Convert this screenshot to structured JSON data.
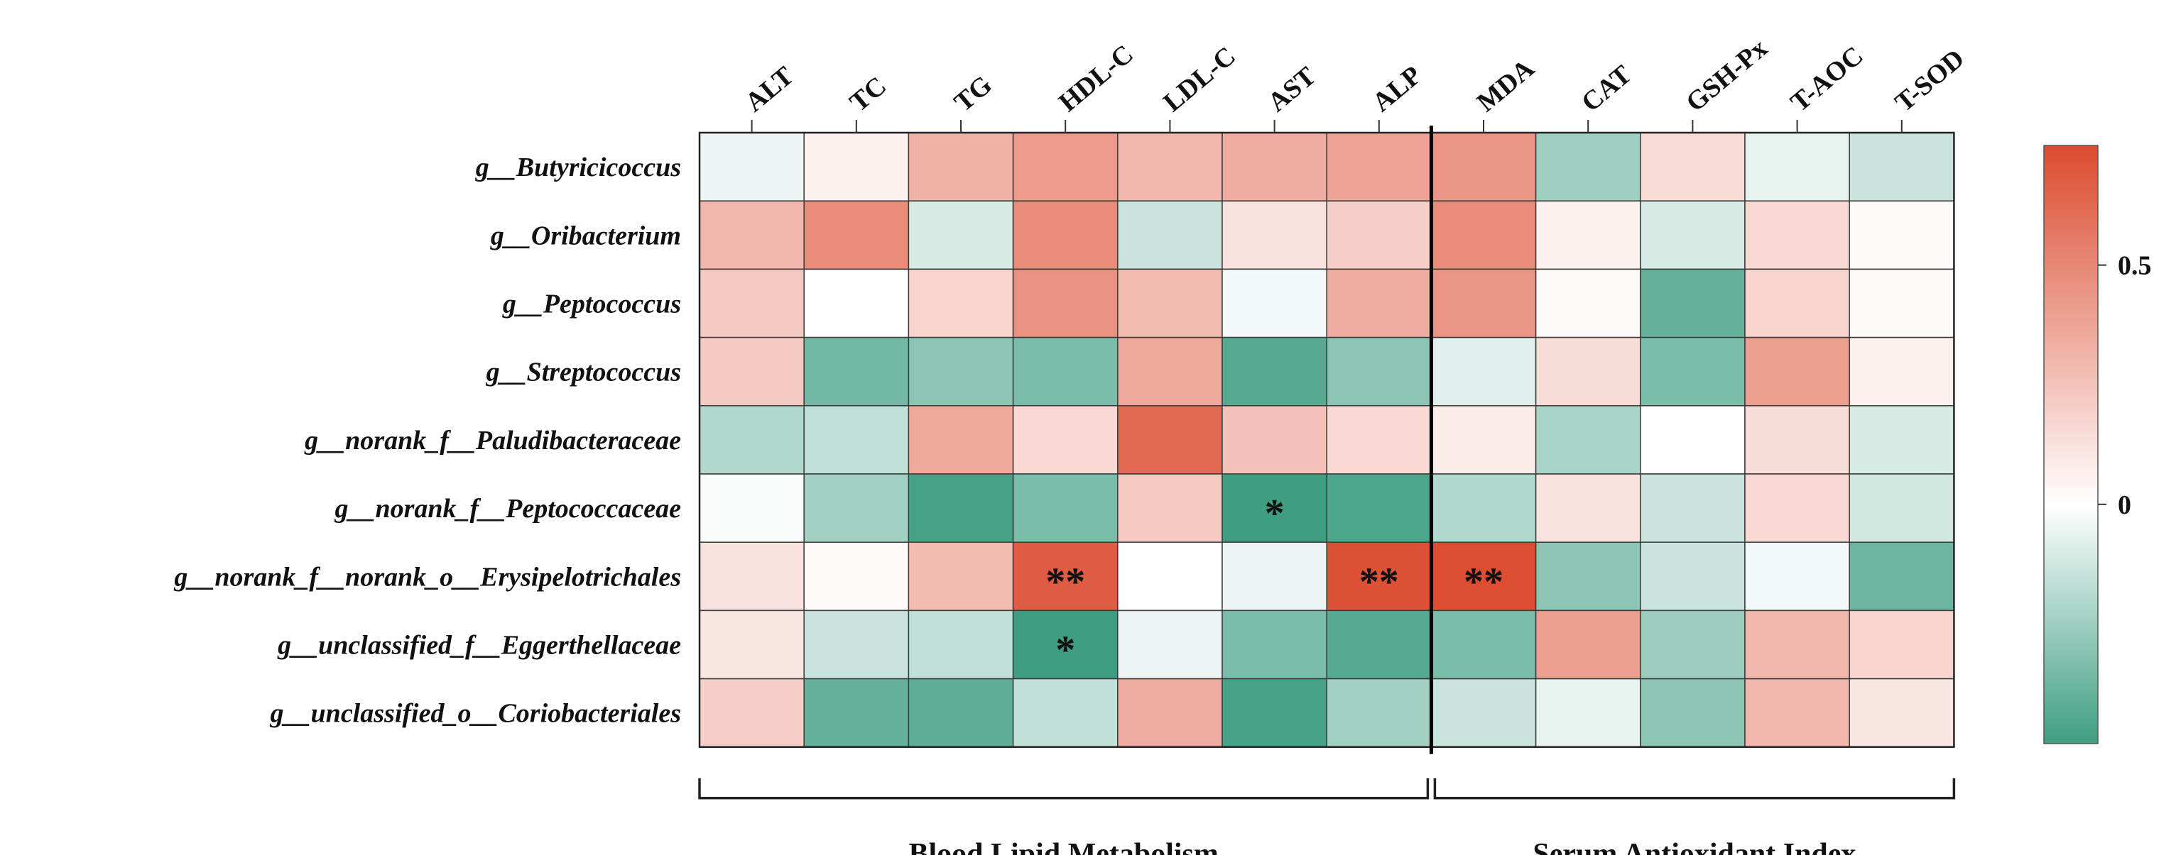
{
  "chart_data": {
    "type": "heatmap",
    "title": "",
    "rows": [
      "g__Butyricicoccus",
      "g__Oribacterium",
      "g__Peptococcus",
      "g__Streptococcus",
      "g__norank_f__Paludibacteraceae",
      "g__norank_f__Peptococcaceae",
      "g__norank_f__norank_o__Erysipelotrichales",
      "g__unclassified_f__Eggerthellaceae",
      "g__unclassified_o__Coriobacteriales"
    ],
    "columns": [
      "ALT",
      "TC",
      "TG",
      "HDL-C",
      "LDL-C",
      "AST",
      "ALP",
      "MDA",
      "CAT",
      "GSH-Px",
      "T-AOC",
      "T-SOD"
    ],
    "values": [
      [
        -0.05,
        0.06,
        0.32,
        0.42,
        0.3,
        0.34,
        0.38,
        0.44,
        -0.25,
        0.15,
        -0.06,
        -0.14
      ],
      [
        0.3,
        0.48,
        -0.1,
        0.48,
        -0.14,
        0.12,
        0.2,
        0.48,
        0.06,
        -0.1,
        0.16,
        0.02
      ],
      [
        0.22,
        0.0,
        0.18,
        0.46,
        0.28,
        -0.03,
        0.34,
        0.44,
        0.02,
        -0.4,
        0.18,
        0.02
      ],
      [
        0.22,
        -0.36,
        -0.3,
        -0.34,
        0.36,
        -0.44,
        -0.3,
        -0.08,
        0.14,
        -0.34,
        0.4,
        0.06
      ],
      [
        -0.2,
        -0.16,
        0.36,
        0.16,
        0.62,
        0.26,
        0.16,
        0.08,
        -0.22,
        0.0,
        0.14,
        -0.1
      ],
      [
        -0.02,
        -0.24,
        -0.48,
        -0.34,
        0.22,
        -0.5,
        -0.46,
        -0.2,
        0.12,
        -0.14,
        0.16,
        -0.12
      ],
      [
        0.12,
        0.02,
        0.28,
        0.68,
        0.0,
        -0.05,
        0.72,
        0.74,
        -0.3,
        -0.14,
        -0.03,
        -0.38
      ],
      [
        0.1,
        -0.14,
        -0.16,
        -0.5,
        -0.05,
        -0.34,
        -0.44,
        -0.34,
        0.4,
        -0.26,
        0.3,
        0.18
      ],
      [
        0.2,
        -0.4,
        -0.42,
        -0.16,
        0.34,
        -0.48,
        -0.24,
        -0.14,
        -0.06,
        -0.3,
        0.3,
        0.1
      ]
    ],
    "significance": [
      [
        "",
        "",
        "",
        "",
        "",
        "",
        "",
        "",
        "",
        "",
        "",
        ""
      ],
      [
        "",
        "",
        "",
        "",
        "",
        "",
        "",
        "",
        "",
        "",
        "",
        ""
      ],
      [
        "",
        "",
        "",
        "",
        "",
        "",
        "",
        "",
        "",
        "",
        "",
        ""
      ],
      [
        "",
        "",
        "",
        "",
        "",
        "",
        "",
        "",
        "",
        "",
        "",
        ""
      ],
      [
        "",
        "",
        "",
        "",
        "",
        "",
        "",
        "",
        "",
        "",
        "",
        ""
      ],
      [
        "",
        "",
        "",
        "",
        "",
        "*",
        "",
        "",
        "",
        "",
        "",
        ""
      ],
      [
        "",
        "",
        "",
        "**",
        "",
        "",
        "**",
        "**",
        "",
        "",
        "",
        ""
      ],
      [
        "",
        "",
        "",
        "*",
        "",
        "",
        "",
        "",
        "",
        "",
        "",
        ""
      ],
      [
        "",
        "",
        "",
        "",
        "",
        "",
        "",
        "",
        "",
        "",
        "",
        ""
      ]
    ],
    "groups": [
      {
        "label": "Blood Lipid Metabolism",
        "start": 0,
        "end": 6
      },
      {
        "label": "Serum Antioxidant Index",
        "start": 7,
        "end": 11
      }
    ],
    "colorbar": {
      "min": -0.5,
      "max": 0.75,
      "ticks": [
        {
          "value": 0.5,
          "label": "0.5"
        },
        {
          "value": 0,
          "label": "0"
        }
      ],
      "neg_color": "#3e9e82",
      "mid_color": "#ffffff",
      "pos_color": "#dc4b2f"
    },
    "legend": "right"
  }
}
